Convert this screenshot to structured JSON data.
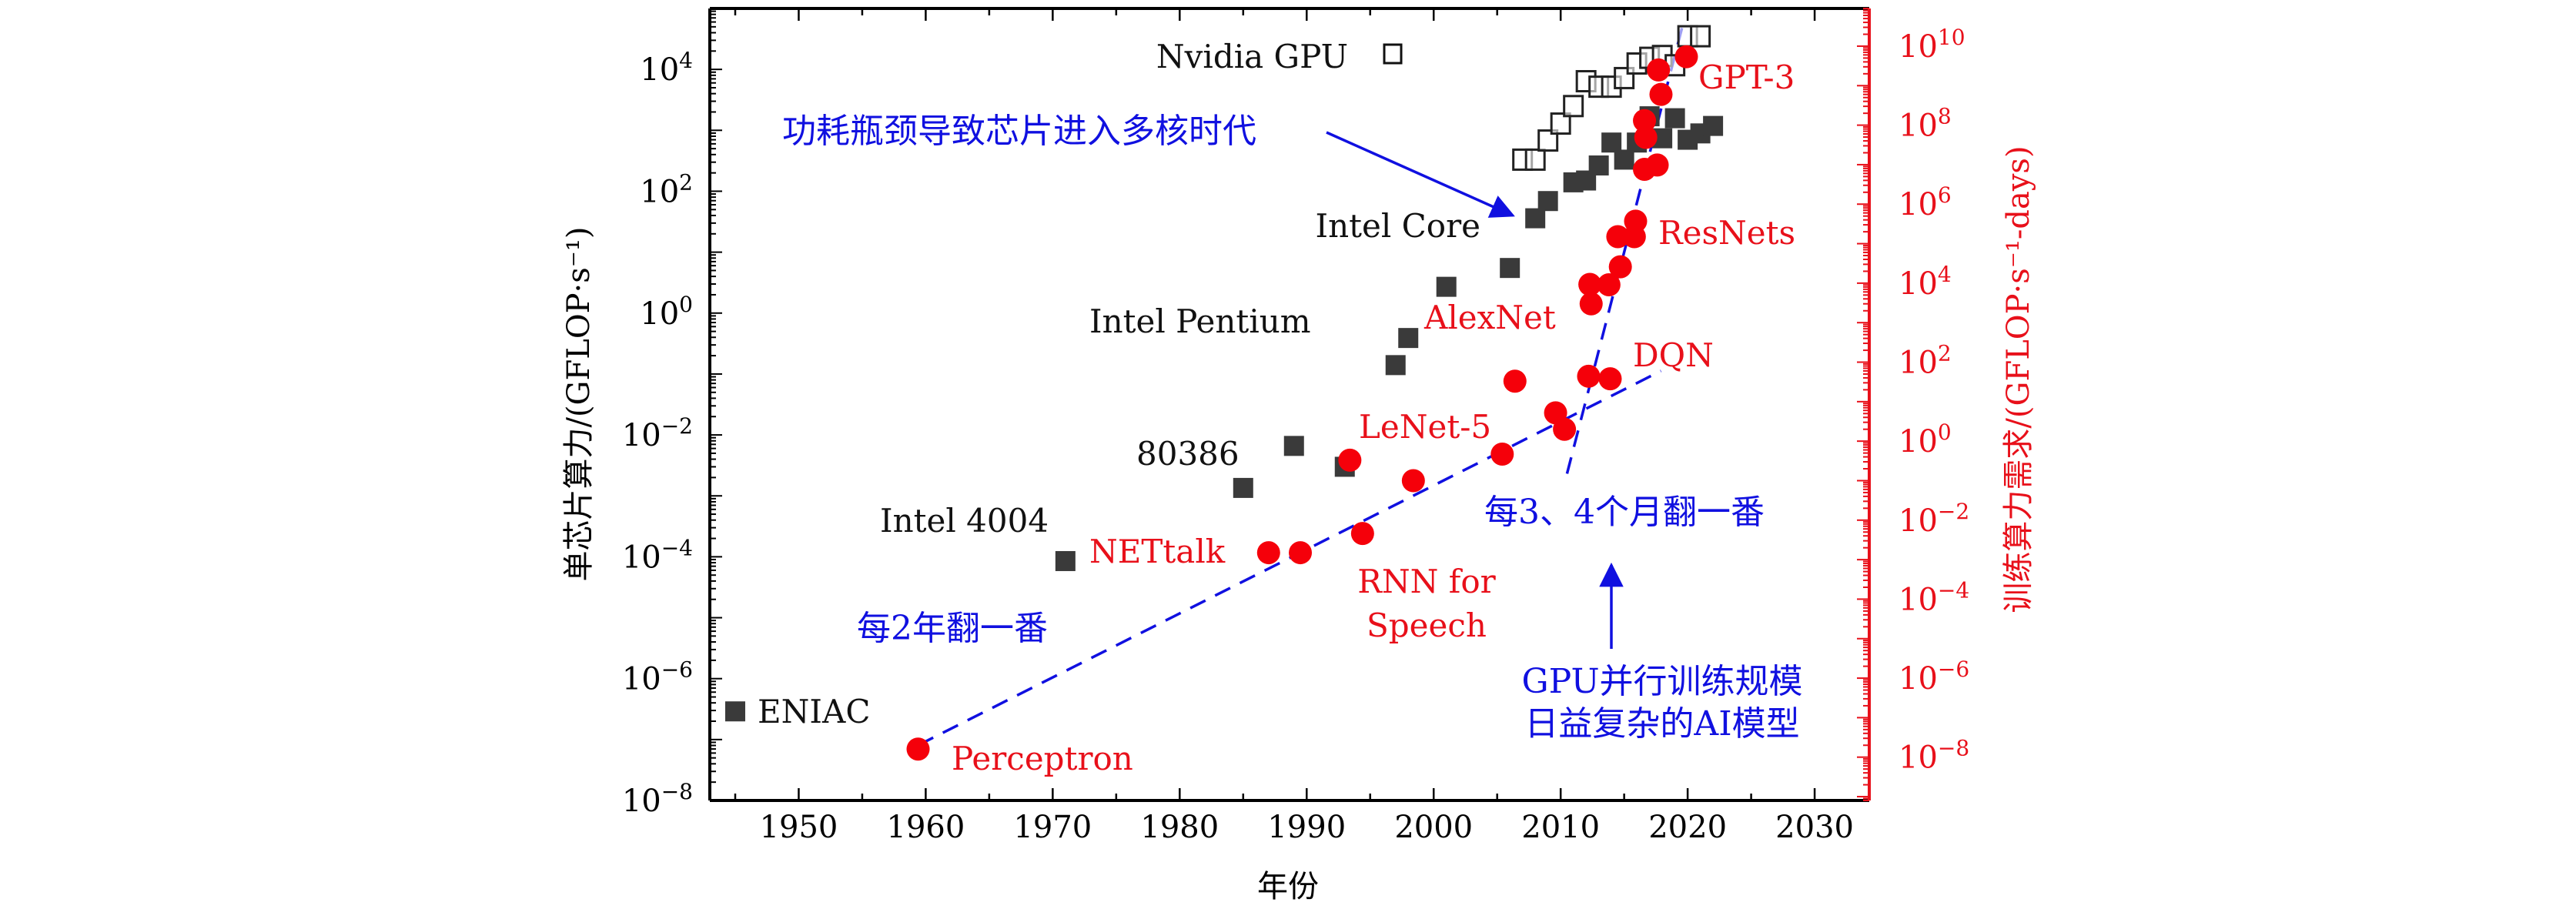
{
  "chart_data": {
    "type": "scatter",
    "xlabel": "年份",
    "ylabel_left": "单芯片算力/(GFLOP·s⁻¹)",
    "ylabel_right": "训练算力需求/(GFLOP·s⁻¹-days)",
    "xlim": [
      1943,
      2034.3
    ],
    "ylim_left": [
      1e-08,
      100000.0
    ],
    "ylim_right": [
      8e-10,
      90000000000.0
    ],
    "yscale": "log",
    "x_ticks": [
      "1950",
      "1960",
      "1970",
      "1980",
      "1990",
      "2000",
      "2010",
      "2020",
      "2030"
    ],
    "y_left_ticks": [
      "10^4",
      "10^2",
      "10^0",
      "10^-2",
      "10^-4",
      "10^-6",
      "10^-8"
    ],
    "y_right_ticks": [
      "10^10",
      "10^8",
      "10^6",
      "10^4",
      "10^2",
      "10^0",
      "10^-2",
      "10^-4",
      "10^-6",
      "10^-8"
    ],
    "left_axis_color": "#000000",
    "right_axis_color": "#e8101a",
    "grid": false,
    "series": [
      {
        "name": "",
        "axis": "left",
        "marker": "filled-square",
        "color": "#3a3a3a",
        "points": [
          [
            1945,
            2.9e-07
          ],
          [
            1971,
            8.5e-05
          ],
          [
            1985,
            0.00135
          ],
          [
            1989,
            0.0066
          ],
          [
            1993,
            0.003
          ],
          [
            1997,
            0.14
          ],
          [
            1998,
            0.39
          ],
          [
            2001,
            2.7
          ],
          [
            2006,
            5.5
          ],
          [
            2008,
            36
          ],
          [
            2009,
            69
          ],
          [
            2011,
            140
          ],
          [
            2012,
            150
          ],
          [
            2013,
            265
          ],
          [
            2014,
            630
          ],
          [
            2015,
            330
          ],
          [
            2016,
            630
          ],
          [
            2017,
            1700
          ],
          [
            2018,
            740
          ],
          [
            2019,
            1580
          ],
          [
            2020,
            700
          ],
          [
            2021,
            890
          ],
          [
            2022,
            1180
          ]
        ]
      },
      {
        "name": "Nvidia GPU",
        "axis": "left",
        "marker": "open-square",
        "color": "#222222",
        "points": [
          [
            2007,
            330
          ],
          [
            2008,
            330
          ],
          [
            2009,
            680
          ],
          [
            2010,
            1290
          ],
          [
            2011,
            2500
          ],
          [
            2012,
            6400
          ],
          [
            2013,
            5200
          ],
          [
            2014,
            5200
          ],
          [
            2015,
            7200
          ],
          [
            2016,
            12500
          ],
          [
            2017,
            15500
          ],
          [
            2018,
            16600
          ],
          [
            2019,
            11700
          ],
          [
            2020,
            35000
          ],
          [
            2021,
            35000
          ]
        ]
      },
      {
        "name": "",
        "axis": "right",
        "marker": "circle",
        "color": "#f5000a",
        "points": [
          [
            1959.4,
            1.6e-08
          ],
          [
            1987.0,
            0.0015
          ],
          [
            1989.5,
            0.0015
          ],
          [
            1993.4,
            0.33
          ],
          [
            1994.4,
            0.0046
          ],
          [
            1998.4,
            0.1
          ],
          [
            2005.4,
            0.47
          ],
          [
            2006.4,
            33
          ],
          [
            2009.6,
            5.2
          ],
          [
            2010.3,
            2
          ],
          [
            2012.2,
            44
          ],
          [
            2012.3,
            9300
          ],
          [
            2012.4,
            3000
          ],
          [
            2013.8,
            9100
          ],
          [
            2013.9,
            38
          ],
          [
            2014.7,
            26000
          ],
          [
            2014.5,
            150000.0
          ],
          [
            2015.8,
            150000.0
          ],
          [
            2015.9,
            370000.0
          ],
          [
            2016.6,
            7600000.0
          ],
          [
            2017.6,
            9800000.0
          ],
          [
            2016.7,
            49000000.0
          ],
          [
            2016.6,
            130000000.0
          ],
          [
            2017.9,
            600000000.0
          ],
          [
            2017.7,
            2500000000.0
          ],
          [
            2019.9,
            5400000000.0
          ]
        ]
      }
    ],
    "trend_lines": [
      {
        "axis": "right",
        "style": "dashed",
        "color": "#1010e0",
        "from": [
          1959.4,
          2e-08
        ],
        "to": [
          2017.9,
          60
        ]
      },
      {
        "axis": "right",
        "style": "dashed",
        "color": "#1010e0",
        "from": [
          2010.5,
          0.15
        ],
        "to": [
          2019.7,
          44000000000.0
        ]
      }
    ],
    "annotations": {
      "nvidia": "Nvidia GPU",
      "multicore": "功耗瓶颈导致芯片进入多核时代",
      "intel_core": "Intel Core",
      "intel_pentium": "Intel Pentium",
      "i80386": "80386",
      "intel_4004": "Intel 4004",
      "eniac": "ENIAC",
      "perceptron": "Perceptron",
      "nettalk": "NETtalk",
      "rnn1": "RNN for",
      "rnn2": "Speech",
      "lenet": "LeNet-5",
      "alexnet": "AlexNet",
      "dqn": "DQN",
      "resnets": "ResNets",
      "gpt3": "GPT-3",
      "double2y": "每2年翻一番",
      "double34m": "每3、4个月翻一番",
      "gpu1": "GPU并行训练规模",
      "gpu2": "日益复杂的AI模型"
    }
  }
}
